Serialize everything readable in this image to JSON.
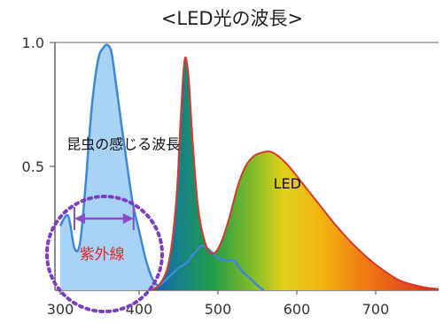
{
  "chart_data": {
    "type": "area",
    "title": "<LED光の波長>",
    "xlim": [
      300,
      780
    ],
    "ylim": [
      0,
      1.0
    ],
    "xticks": [
      "300",
      "400",
      "500",
      "600",
      "700"
    ],
    "yticks": [
      "0.5",
      "1.0"
    ],
    "series": [
      {
        "name": "昆虫の感じる波長",
        "color": "#3d86d8",
        "fill": "#a9d3f5",
        "x": [
          300,
          310,
          318,
          325,
          332,
          340,
          348,
          355,
          360,
          365,
          370,
          378,
          385,
          392,
          400,
          408,
          415,
          420,
          425,
          430,
          440,
          450,
          460,
          470,
          480,
          490,
          500,
          510,
          520,
          530,
          540,
          550,
          558
        ],
        "y": [
          0.26,
          0.3,
          0.17,
          0.19,
          0.42,
          0.74,
          0.93,
          0.98,
          0.99,
          0.96,
          0.85,
          0.66,
          0.5,
          0.35,
          0.24,
          0.13,
          0.06,
          0.03,
          0.02,
          0.03,
          0.06,
          0.09,
          0.11,
          0.15,
          0.18,
          0.16,
          0.13,
          0.12,
          0.12,
          0.08,
          0.05,
          0.02,
          0.0
        ]
      },
      {
        "name": "LED",
        "color": "#d9382b",
        "x": [
          415,
          425,
          435,
          442,
          448,
          452,
          456,
          459,
          463,
          468,
          475,
          485,
          495,
          505,
          515,
          525,
          535,
          545,
          555,
          565,
          575,
          590,
          610,
          630,
          650,
          670,
          690,
          710,
          730,
          750,
          765,
          780
        ],
        "y": [
          0.0,
          0.02,
          0.08,
          0.2,
          0.4,
          0.65,
          0.87,
          0.94,
          0.85,
          0.6,
          0.33,
          0.18,
          0.15,
          0.2,
          0.3,
          0.42,
          0.5,
          0.54,
          0.555,
          0.56,
          0.545,
          0.5,
          0.42,
          0.34,
          0.26,
          0.19,
          0.13,
          0.08,
          0.04,
          0.02,
          0.01,
          0.005
        ]
      }
    ],
    "annotations": [
      {
        "text": "昆虫の感じる波長",
        "x": 380,
        "y": 0.57
      },
      {
        "text": "LED",
        "x": 588,
        "y": 0.41
      },
      {
        "text": "紫外線",
        "x": 353,
        "y": 0.125,
        "color": "#e6262a",
        "range": [
          318,
          393
        ]
      }
    ],
    "colors": {
      "axis": "#666666",
      "uv_arrow": "#8a4fc7",
      "uv_circle": "#7a3fbf"
    }
  }
}
